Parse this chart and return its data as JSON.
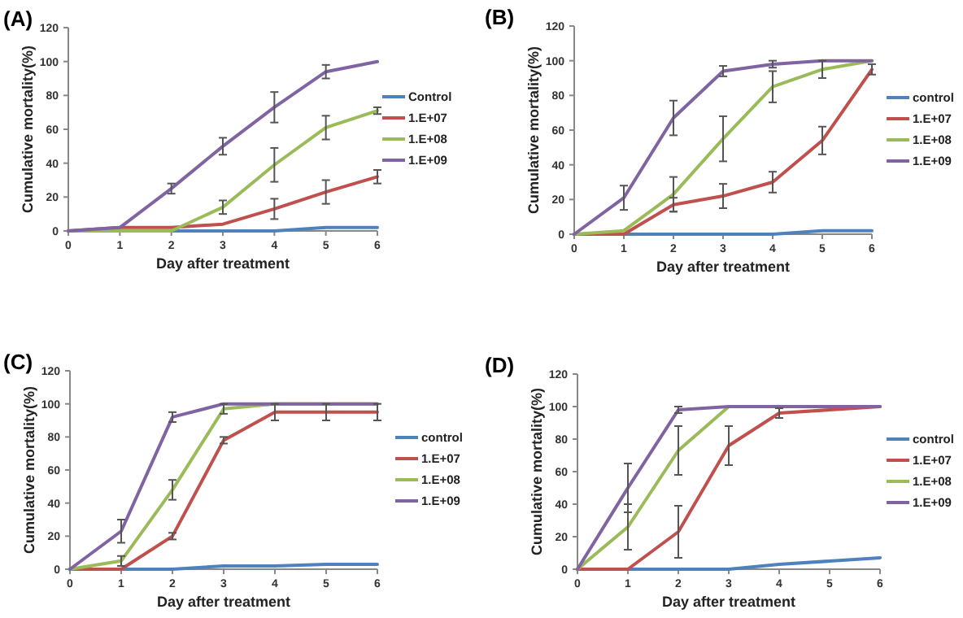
{
  "chart_data": [
    {
      "type": "line",
      "title": "(A)",
      "xlabel": "Day after treatment",
      "ylabel": "Cumulative mortality(%)",
      "x": [
        0,
        1,
        2,
        3,
        4,
        5,
        6
      ],
      "xlim": [
        0,
        6
      ],
      "xticks": [
        0,
        1,
        2,
        3,
        4,
        5,
        6
      ],
      "ylim": [
        0,
        120
      ],
      "yticks": [
        0,
        20,
        40,
        60,
        80,
        100,
        120
      ],
      "legend": "right",
      "series": [
        {
          "name": "Control",
          "color": "#4f81bd",
          "values": [
            0,
            0,
            0,
            0,
            0,
            2,
            2
          ]
        },
        {
          "name": "1.E+07",
          "color": "#c0504d",
          "values": [
            0,
            2,
            2,
            4,
            13,
            23,
            32
          ],
          "errors": [
            null,
            null,
            null,
            null,
            6,
            7,
            4
          ]
        },
        {
          "name": "1.E+08",
          "color": "#9bbb59",
          "values": [
            0,
            0,
            0,
            14,
            39,
            61,
            71
          ],
          "errors": [
            null,
            null,
            null,
            4,
            10,
            7,
            2
          ]
        },
        {
          "name": "1.E+09",
          "color": "#8064a2",
          "values": [
            0,
            2,
            25,
            50,
            73,
            94,
            100
          ],
          "errors": [
            null,
            null,
            3,
            5,
            9,
            4,
            null
          ]
        }
      ]
    },
    {
      "type": "line",
      "title": "(B)",
      "xlabel": "Day after treatment",
      "ylabel": "Cumulative mortality(%)",
      "x": [
        0,
        1,
        2,
        3,
        4,
        5,
        6
      ],
      "xlim": [
        0,
        6
      ],
      "xticks": [
        0,
        1,
        2,
        3,
        4,
        5,
        6
      ],
      "ylim": [
        0,
        120
      ],
      "yticks": [
        0,
        20,
        40,
        60,
        80,
        100,
        120
      ],
      "legend": "right",
      "series": [
        {
          "name": "control",
          "color": "#4f81bd",
          "values": [
            0,
            0,
            0,
            0,
            0,
            2,
            2
          ]
        },
        {
          "name": "1.E+07",
          "color": "#c0504d",
          "values": [
            0,
            0,
            17,
            22,
            30,
            54,
            95
          ],
          "errors": [
            null,
            null,
            4,
            7,
            6,
            8,
            3
          ]
        },
        {
          "name": "1.E+08",
          "color": "#9bbb59",
          "values": [
            0,
            2,
            23,
            55,
            85,
            95,
            100
          ],
          "errors": [
            null,
            null,
            10,
            13,
            9,
            5,
            null
          ]
        },
        {
          "name": "1.E+09",
          "color": "#8064a2",
          "values": [
            0,
            21,
            67,
            94,
            98,
            100,
            100
          ],
          "errors": [
            null,
            7,
            10,
            3,
            2,
            null,
            null
          ]
        }
      ]
    },
    {
      "type": "line",
      "title": "(C)",
      "xlabel": "Day after treatment",
      "ylabel": "Cumulative mortality(%)",
      "x": [
        0,
        1,
        2,
        3,
        4,
        5,
        6
      ],
      "xlim": [
        0,
        6
      ],
      "xticks": [
        0,
        1,
        2,
        3,
        4,
        5,
        6
      ],
      "ylim": [
        0,
        120
      ],
      "yticks": [
        0,
        20,
        40,
        60,
        80,
        100,
        120
      ],
      "legend": "right",
      "series": [
        {
          "name": "control",
          "color": "#4f81bd",
          "values": [
            0,
            0,
            0,
            2,
            2,
            3,
            3
          ]
        },
        {
          "name": "1.E+07",
          "color": "#c0504d",
          "values": [
            0,
            0,
            20,
            78,
            95,
            95,
            95
          ],
          "errors": [
            null,
            null,
            2,
            2,
            5,
            5,
            5
          ]
        },
        {
          "name": "1.E+08",
          "color": "#9bbb59",
          "values": [
            0,
            5,
            48,
            97,
            100,
            100,
            100
          ],
          "errors": [
            null,
            3,
            6,
            3,
            null,
            null,
            null
          ]
        },
        {
          "name": "1.E+09",
          "color": "#8064a2",
          "values": [
            0,
            23,
            92,
            100,
            100,
            100,
            100
          ],
          "errors": [
            null,
            7,
            3,
            null,
            null,
            null,
            null
          ]
        }
      ]
    },
    {
      "type": "line",
      "title": "(D)",
      "xlabel": "Day after treatment",
      "ylabel": "Cumulative mortality(%)",
      "x": [
        0,
        1,
        2,
        3,
        4,
        5,
        6
      ],
      "xlim": [
        0,
        6
      ],
      "xticks": [
        0,
        1,
        2,
        3,
        4,
        5,
        6
      ],
      "ylim": [
        0,
        120
      ],
      "yticks": [
        0,
        20,
        40,
        60,
        80,
        100,
        120
      ],
      "legend": "right",
      "series": [
        {
          "name": "control",
          "color": "#4f81bd",
          "values": [
            0,
            0,
            0,
            0,
            3,
            5,
            7
          ]
        },
        {
          "name": "1.E+07",
          "color": "#c0504d",
          "values": [
            0,
            0,
            23,
            76,
            96,
            98,
            100
          ],
          "errors": [
            null,
            null,
            16,
            12,
            3,
            null,
            null
          ]
        },
        {
          "name": "1.E+08",
          "color": "#9bbb59",
          "values": [
            0,
            26,
            73,
            100,
            100,
            null,
            null
          ],
          "errors": [
            null,
            14,
            15,
            null,
            null,
            null,
            null
          ]
        },
        {
          "name": "1.E+09",
          "color": "#8064a2",
          "values": [
            0,
            50,
            98,
            100,
            100,
            100,
            100
          ],
          "errors": [
            null,
            15,
            2,
            null,
            null,
            null,
            null
          ]
        }
      ]
    }
  ]
}
